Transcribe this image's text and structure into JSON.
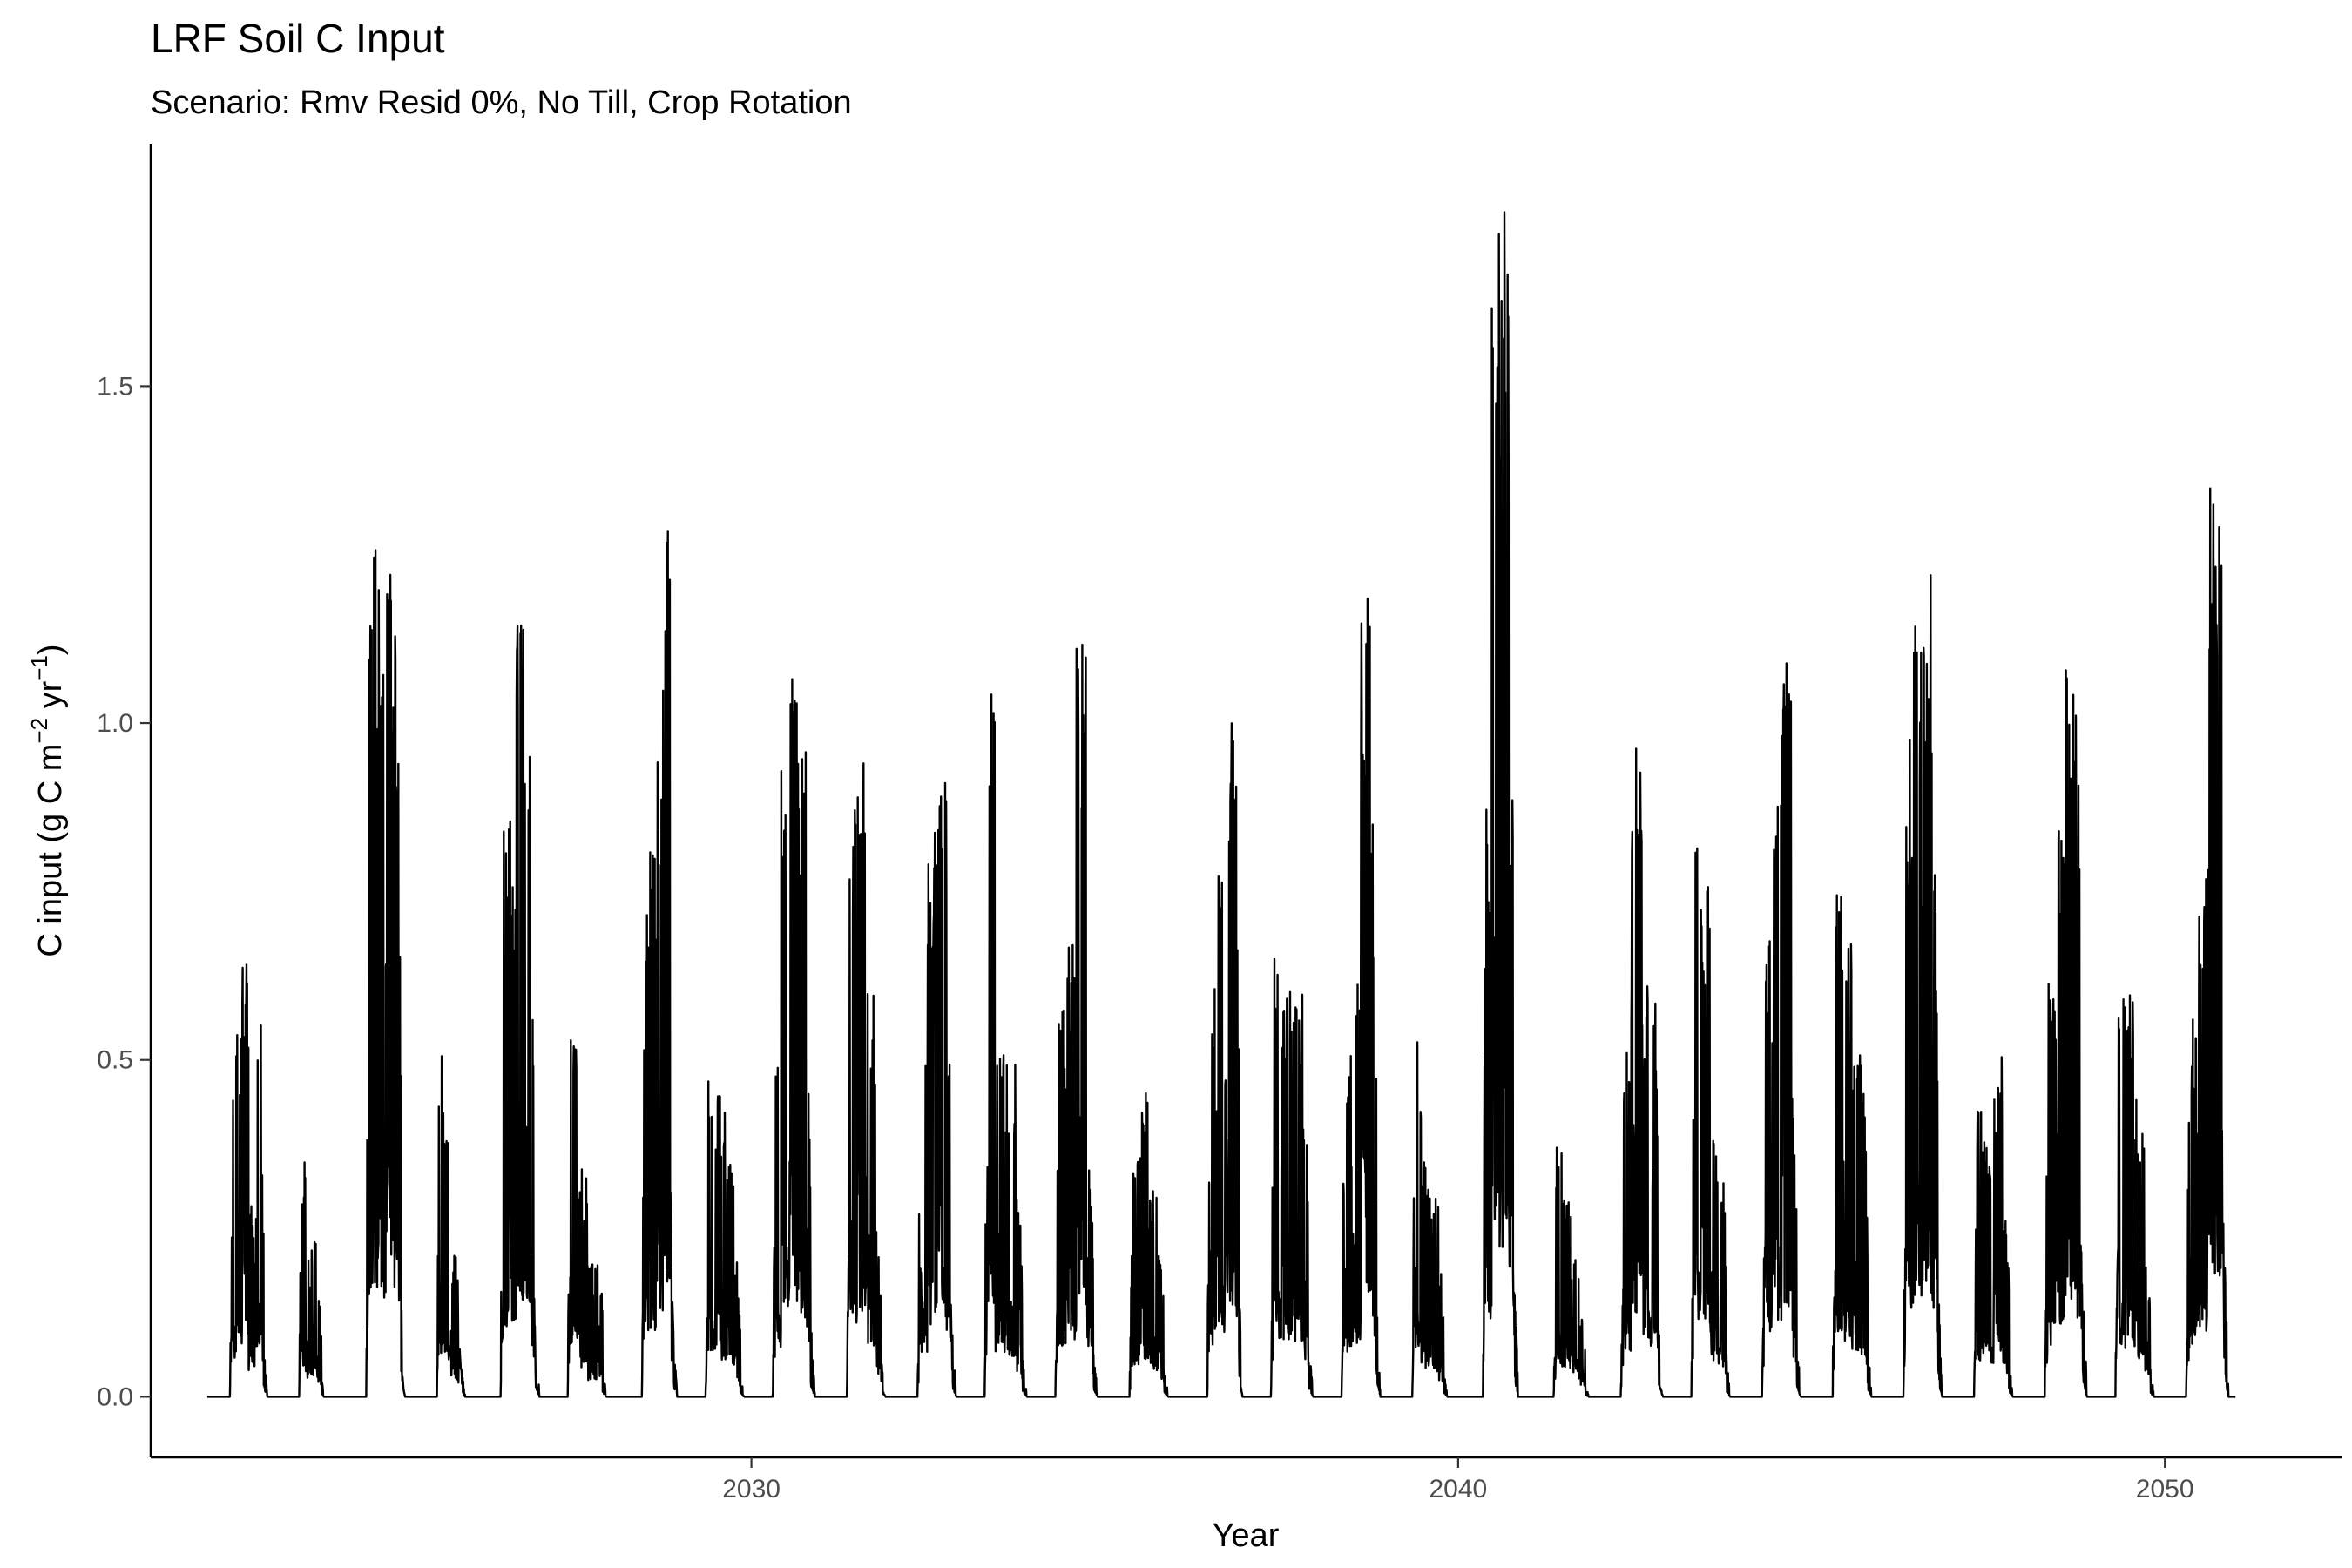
{
  "chart_data": {
    "type": "line",
    "title": "LRF Soil C Input",
    "subtitle": "Scenario: Rmv Resid 0%, No Till, Crop Rotation",
    "xlabel": "Year",
    "ylabel": {
      "prefix": "C input (g C m",
      "sup1": "−2",
      "mid": " yr",
      "sup2": "−1",
      "suffix": ")"
    },
    "xlim": [
      2021.5,
      2052.5
    ],
    "ylim": [
      -0.09,
      1.86
    ],
    "x_ticks": [
      2030,
      2040,
      2050
    ],
    "y_ticks": [
      0.0,
      0.5,
      1.0,
      1.5
    ],
    "y_tick_labels": [
      "0.0",
      "0.5",
      "1.0",
      "1.5"
    ],
    "grid": false,
    "line_color": "#000000",
    "data_range": [
      2022.3,
      2051.0
    ],
    "seasons": [
      {
        "start": 2022.62,
        "end": 2023.15,
        "peaks": [
          0.48,
          0.57,
          0.69,
          0.3,
          0.62,
          0.44
        ]
      },
      {
        "start": 2023.6,
        "end": 2023.95,
        "peaks": [
          0.36,
          0.21,
          0.24,
          0.18
        ]
      },
      {
        "start": 2024.55,
        "end": 2025.1,
        "peaks": [
          1.32,
          1.26,
          1.2,
          1.25,
          1.14,
          0.9
        ]
      },
      {
        "start": 2025.55,
        "end": 2025.95,
        "peaks": [
          0.53,
          0.39,
          0.21,
          0.17
        ]
      },
      {
        "start": 2026.45,
        "end": 2027.0,
        "peaks": [
          0.86,
          0.86,
          1.2,
          1.1,
          0.61
        ]
      },
      {
        "start": 2027.4,
        "end": 2027.95,
        "peaks": [
          0.64,
          0.34,
          0.2,
          0.24
        ]
      },
      {
        "start": 2028.45,
        "end": 2028.95,
        "peaks": [
          0.8,
          0.82,
          1.02,
          1.29,
          0.5
        ]
      },
      {
        "start": 2029.35,
        "end": 2029.9,
        "peaks": [
          0.53,
          0.45,
          0.38,
          0.2
        ]
      },
      {
        "start": 2030.3,
        "end": 2030.9,
        "peaks": [
          0.58,
          1.0,
          1.07,
          0.97,
          0.6
        ]
      },
      {
        "start": 2031.35,
        "end": 2031.9,
        "peaks": [
          0.9,
          1.0,
          0.6,
          0.25
        ]
      },
      {
        "start": 2032.35,
        "end": 2032.9,
        "peaks": [
          0.55,
          0.84,
          0.92,
          0.55
        ]
      },
      {
        "start": 2033.3,
        "end": 2033.9,
        "peaks": [
          1.09,
          0.55,
          0.5,
          0.3
        ]
      },
      {
        "start": 2034.3,
        "end": 2034.9,
        "peaks": [
          0.6,
          0.68,
          1.14,
          0.4
        ]
      },
      {
        "start": 2035.35,
        "end": 2035.9,
        "peaks": [
          0.37,
          0.46,
          0.31,
          0.23
        ]
      },
      {
        "start": 2036.45,
        "end": 2036.95,
        "peaks": [
          0.62,
          0.8,
          1.04,
          0.93
        ]
      },
      {
        "start": 2037.35,
        "end": 2037.95,
        "peaks": [
          0.7,
          0.61,
          0.61,
          0.45
        ]
      },
      {
        "start": 2038.35,
        "end": 2038.9,
        "peaks": [
          0.52,
          0.63,
          1.2,
          0.86
        ]
      },
      {
        "start": 2039.35,
        "end": 2039.85,
        "peaks": [
          0.53,
          0.35,
          0.3,
          0.2
        ]
      },
      {
        "start": 2040.35,
        "end": 2040.85,
        "peaks": [
          0.91,
          1.74,
          1.77,
          1.02
        ]
      },
      {
        "start": 2041.35,
        "end": 2041.85,
        "peaks": [
          0.37,
          0.3,
          0.22,
          0.12
        ]
      },
      {
        "start": 2042.3,
        "end": 2042.9,
        "peaks": [
          0.55,
          1.02,
          0.61,
          0.6
        ]
      },
      {
        "start": 2043.3,
        "end": 2043.85,
        "peaks": [
          0.87,
          0.78,
          0.4,
          0.35
        ]
      },
      {
        "start": 2044.3,
        "end": 2044.85,
        "peaks": [
          0.72,
          0.94,
          1.12,
          0.46
        ]
      },
      {
        "start": 2045.3,
        "end": 2045.85,
        "peaks": [
          0.76,
          0.69,
          0.52,
          0.45
        ]
      },
      {
        "start": 2046.3,
        "end": 2046.85,
        "peaks": [
          0.99,
          1.16,
          1.25,
          0.89
        ]
      },
      {
        "start": 2047.3,
        "end": 2047.85,
        "peaks": [
          0.44,
          0.39,
          0.52,
          0.3
        ]
      },
      {
        "start": 2048.3,
        "end": 2048.9,
        "peaks": [
          0.63,
          0.85,
          1.09,
          0.91
        ]
      },
      {
        "start": 2049.3,
        "end": 2049.85,
        "peaks": [
          0.64,
          0.6,
          0.45,
          0.22
        ]
      },
      {
        "start": 2050.3,
        "end": 2050.9,
        "peaks": [
          0.58,
          0.78,
          1.39,
          1.34
        ]
      }
    ]
  }
}
